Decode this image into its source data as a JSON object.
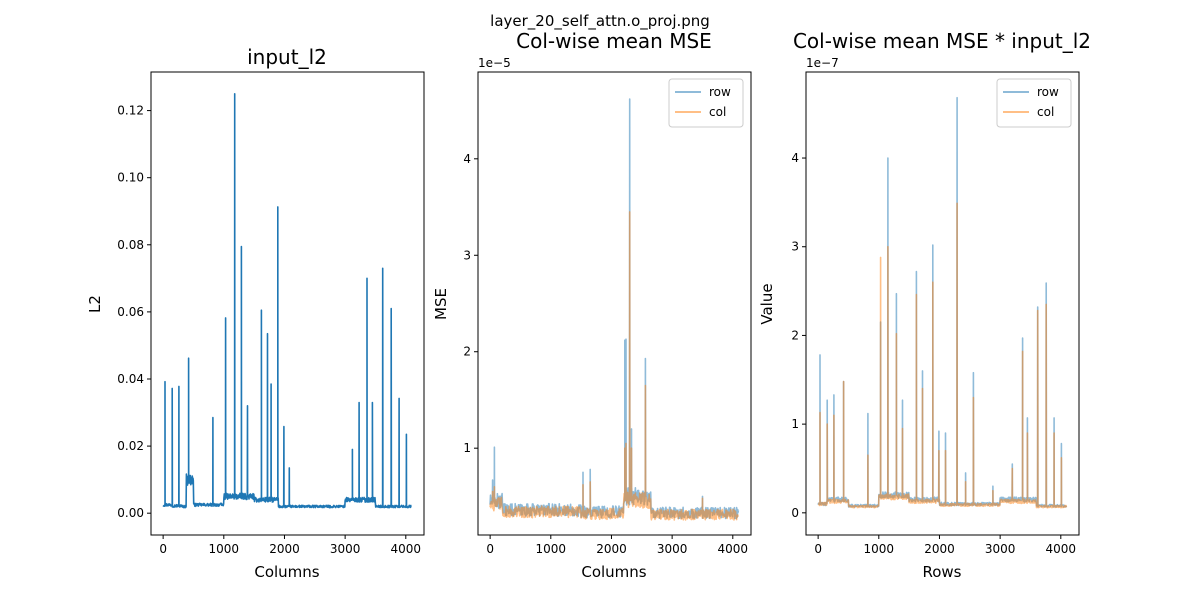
{
  "figure": {
    "suptitle": "layer_20_self_attn.o_proj.png"
  },
  "chart_data": [
    {
      "type": "line",
      "title": "input_l2",
      "xlabel": "Columns",
      "ylabel": "L2",
      "xlim": [
        -200,
        4300
      ],
      "ylim": [
        -0.0065,
        0.1315
      ],
      "xticks": [
        0,
        1000,
        2000,
        3000,
        4000
      ],
      "yticks": [
        0.0,
        0.02,
        0.04,
        0.06,
        0.08,
        0.1,
        0.12
      ],
      "ytick_labels": [
        "0.00",
        "0.02",
        "0.04",
        "0.06",
        "0.08",
        "0.10",
        "0.12"
      ],
      "offset_text": "",
      "baseline": 0.003,
      "series": [
        {
          "color": "#1f77b4",
          "segments": [
            [
              0,
              150,
              0.0025
            ],
            [
              150,
              300,
              0.0022
            ],
            [
              380,
              500,
              0.01
            ],
            [
              500,
              1000,
              0.0025
            ],
            [
              1000,
              1500,
              0.005
            ],
            [
              1500,
              1900,
              0.004
            ],
            [
              1900,
              3000,
              0.002
            ],
            [
              3000,
              3500,
              0.004
            ],
            [
              3500,
              4096,
              0.002
            ]
          ],
          "spikes": [
            [
              30,
              0.0392
            ],
            [
              150,
              0.0372
            ],
            [
              260,
              0.0378
            ],
            [
              420,
              0.0462
            ],
            [
              820,
              0.0285
            ],
            [
              1030,
              0.0582
            ],
            [
              1180,
              0.125
            ],
            [
              1290,
              0.0795
            ],
            [
              1390,
              0.032
            ],
            [
              1620,
              0.0605
            ],
            [
              1720,
              0.0535
            ],
            [
              1780,
              0.0385
            ],
            [
              1890,
              0.0913
            ],
            [
              1990,
              0.0258
            ],
            [
              2080,
              0.0135
            ],
            [
              3120,
              0.019
            ],
            [
              3230,
              0.033
            ],
            [
              3360,
              0.07
            ],
            [
              3450,
              0.033
            ],
            [
              3620,
              0.073
            ],
            [
              3760,
              0.061
            ],
            [
              3890,
              0.0342
            ],
            [
              4010,
              0.0235
            ]
          ]
        }
      ]
    },
    {
      "type": "line",
      "title": "Col-wise mean MSE",
      "xlabel": "Columns",
      "ylabel": "MSE",
      "xlim": [
        -200,
        4300
      ],
      "ylim": [
        0.1,
        4.9
      ],
      "xticks": [
        0,
        1000,
        2000,
        3000,
        4000
      ],
      "yticks": [
        1,
        2,
        3,
        4
      ],
      "ytick_labels": [
        "1",
        "2",
        "3",
        "4"
      ],
      "offset_text": "1e−5",
      "legend": {
        "position": "upper right",
        "entries": [
          "row",
          "col"
        ]
      },
      "series": [
        {
          "name": "row",
          "color": "#1f77b4",
          "alpha": 0.5,
          "segments": [
            [
              0,
              200,
              0.45
            ],
            [
              200,
              1500,
              0.36
            ],
            [
              1500,
              2200,
              0.34
            ],
            [
              2200,
              2650,
              0.5
            ],
            [
              2650,
              4096,
              0.33
            ]
          ],
          "spikes": [
            [
              40,
              0.67
            ],
            [
              70,
              1.01
            ],
            [
              1530,
              0.75
            ],
            [
              1650,
              0.78
            ],
            [
              2220,
              2.12
            ],
            [
              2240,
              2.13
            ],
            [
              2300,
              4.62
            ],
            [
              2330,
              1.2
            ],
            [
              2560,
              1.93
            ],
            [
              3500,
              0.5
            ]
          ]
        },
        {
          "name": "col",
          "color": "#ff7f0e",
          "alpha": 0.5,
          "segments": [
            [
              0,
              200,
              0.42
            ],
            [
              200,
              1500,
              0.34
            ],
            [
              1500,
              2200,
              0.32
            ],
            [
              2200,
              2650,
              0.46
            ],
            [
              2650,
              4096,
              0.31
            ]
          ],
          "spikes": [
            [
              40,
              0.55
            ],
            [
              70,
              0.6
            ],
            [
              1530,
              0.62
            ],
            [
              1650,
              0.65
            ],
            [
              2220,
              1.0
            ],
            [
              2240,
              1.05
            ],
            [
              2300,
              3.45
            ],
            [
              2330,
              1.0
            ],
            [
              2560,
              1.65
            ],
            [
              3500,
              0.48
            ]
          ]
        }
      ]
    },
    {
      "type": "line",
      "title": "Col-wise mean MSE * input_l2",
      "xlabel": "Rows",
      "ylabel": "Value",
      "xlim": [
        -200,
        4300
      ],
      "ylim": [
        -0.25,
        4.97
      ],
      "xticks": [
        0,
        1000,
        2000,
        3000,
        4000
      ],
      "yticks": [
        0,
        1,
        2,
        3,
        4
      ],
      "ytick_labels": [
        "0",
        "1",
        "2",
        "3",
        "4"
      ],
      "offset_text": "1e−7",
      "legend": {
        "position": "upper right",
        "entries": [
          "row",
          "col"
        ]
      },
      "series": [
        {
          "name": "row",
          "color": "#1f77b4",
          "alpha": 0.5,
          "segments": [
            [
              0,
              150,
              0.1
            ],
            [
              150,
              500,
              0.15
            ],
            [
              500,
              1000,
              0.08
            ],
            [
              1000,
              1500,
              0.2
            ],
            [
              1500,
              2000,
              0.15
            ],
            [
              2000,
              3000,
              0.1
            ],
            [
              3000,
              3600,
              0.15
            ],
            [
              3600,
              4096,
              0.08
            ]
          ],
          "spikes": [
            [
              30,
              1.78
            ],
            [
              150,
              1.27
            ],
            [
              260,
              1.33
            ],
            [
              420,
              1.48
            ],
            [
              820,
              1.12
            ],
            [
              1030,
              2.15
            ],
            [
              1150,
              4.0
            ],
            [
              1290,
              2.47
            ],
            [
              1390,
              1.27
            ],
            [
              1620,
              2.72
            ],
            [
              1720,
              1.6
            ],
            [
              1890,
              3.02
            ],
            [
              1990,
              0.92
            ],
            [
              2100,
              0.9
            ],
            [
              2290,
              4.68
            ],
            [
              2430,
              0.45
            ],
            [
              2560,
              1.58
            ],
            [
              2880,
              0.3
            ],
            [
              3200,
              0.55
            ],
            [
              3370,
              1.97
            ],
            [
              3450,
              1.07
            ],
            [
              3620,
              2.32
            ],
            [
              3760,
              2.59
            ],
            [
              3890,
              1.07
            ],
            [
              4010,
              0.78
            ]
          ]
        },
        {
          "name": "col",
          "color": "#ff7f0e",
          "alpha": 0.5,
          "segments": [
            [
              0,
              150,
              0.1
            ],
            [
              150,
              500,
              0.13
            ],
            [
              500,
              1000,
              0.07
            ],
            [
              1000,
              1500,
              0.18
            ],
            [
              1500,
              2000,
              0.13
            ],
            [
              2000,
              3000,
              0.09
            ],
            [
              3000,
              3600,
              0.13
            ],
            [
              3600,
              4096,
              0.07
            ]
          ],
          "spikes": [
            [
              30,
              1.13
            ],
            [
              150,
              1.0
            ],
            [
              260,
              1.1
            ],
            [
              420,
              1.48
            ],
            [
              820,
              0.65
            ],
            [
              1030,
              2.88
            ],
            [
              1150,
              3.0
            ],
            [
              1290,
              2.02
            ],
            [
              1390,
              0.95
            ],
            [
              1620,
              2.46
            ],
            [
              1720,
              1.4
            ],
            [
              1890,
              2.6
            ],
            [
              1990,
              0.7
            ],
            [
              2100,
              0.7
            ],
            [
              2290,
              3.49
            ],
            [
              2430,
              0.35
            ],
            [
              2560,
              1.3
            ],
            [
              2880,
              0.25
            ],
            [
              3200,
              0.5
            ],
            [
              3370,
              1.82
            ],
            [
              3450,
              0.9
            ],
            [
              3620,
              2.28
            ],
            [
              3760,
              2.35
            ],
            [
              3890,
              0.9
            ],
            [
              4010,
              0.62
            ]
          ]
        }
      ]
    }
  ]
}
